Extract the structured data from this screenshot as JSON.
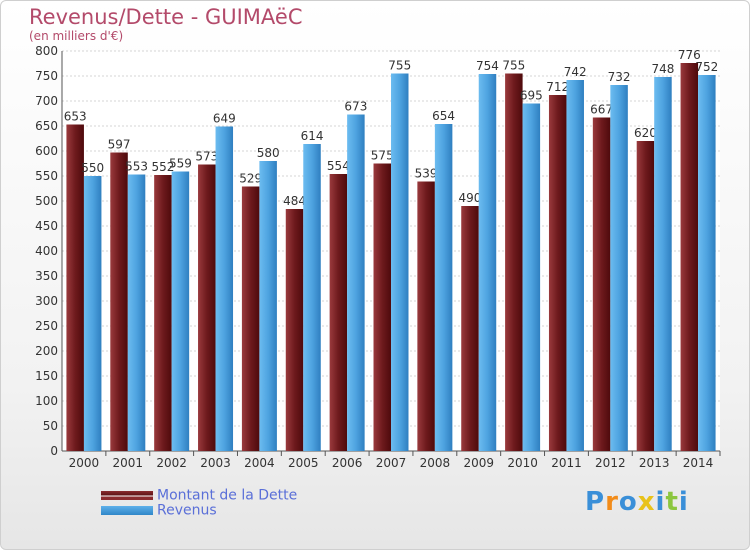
{
  "chart_data": {
    "type": "bar",
    "title": "Revenus/Dette - GUIMAëC",
    "subtitle": "(en milliers d'€)",
    "categories": [
      "2000",
      "2001",
      "2002",
      "2003",
      "2004",
      "2005",
      "2006",
      "2007",
      "2008",
      "2009",
      "2010",
      "2011",
      "2012",
      "2013",
      "2014"
    ],
    "series": [
      {
        "name": "Montant de la Dette",
        "color": "#7a1f22",
        "values": [
          653,
          597,
          552,
          573,
          529,
          484,
          554,
          575,
          539,
          490,
          755,
          712,
          667,
          620,
          776
        ]
      },
      {
        "name": "Revenus",
        "color": "#4ea3e0",
        "values": [
          550,
          553,
          559,
          649,
          580,
          614,
          673,
          755,
          654,
          754,
          695,
          742,
          732,
          748,
          752
        ]
      }
    ],
    "ylim": [
      0,
      800
    ],
    "yticks": [
      0,
      50,
      100,
      150,
      200,
      250,
      300,
      350,
      400,
      450,
      500,
      550,
      600,
      650,
      700,
      750,
      800
    ],
    "grid": true,
    "legend_position": "bottom-left"
  },
  "logo": {
    "text": "Proxiti",
    "letters": [
      "P",
      "r",
      "o",
      "x",
      "i",
      "t",
      "i"
    ],
    "colors": [
      "#3a8fd8",
      "#f28c1a",
      "#3a8fd8",
      "#e8c21a",
      "#3a8fd8",
      "#8cc63f",
      "#3a8fd8"
    ]
  }
}
